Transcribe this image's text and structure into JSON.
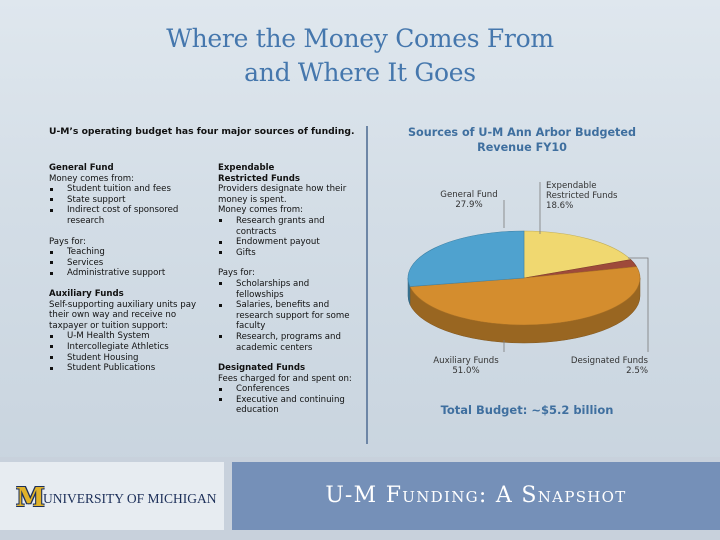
{
  "slide": {
    "title_line1": "Where the Money Comes From",
    "title_line2": "and Where It Goes",
    "intro": "U-M’s operating budget has four major sources of funding."
  },
  "general_fund": {
    "heading": "General Fund",
    "money_from_label": "Money comes from:",
    "sources": [
      "Student tuition and fees",
      "State support",
      "Indirect cost of sponsored research"
    ],
    "pays_for_label": "Pays for:",
    "pays_for": [
      "Teaching",
      "Services",
      "Administrative support"
    ]
  },
  "auxiliary_funds": {
    "heading": "Auxiliary Funds",
    "description": "Self-supporting auxiliary units pay their own way and receive no taxpayer or tuition support:",
    "items": [
      "U-M Health System",
      "Intercollegiate Athletics",
      "Student Housing",
      "Student Publications"
    ]
  },
  "expendable_restricted_funds": {
    "heading_line1": "Expendable",
    "heading_line2": "Restricted Funds",
    "description": "Providers designate how their money is spent.",
    "money_from_label": "Money comes from:",
    "sources": [
      "Research grants and contracts",
      "Endowment payout",
      "Gifts"
    ],
    "pays_for_label": "Pays for:",
    "pays_for": [
      "Scholarships and fellowships",
      "Salaries, benefits and research support for some faculty",
      "Research, programs and academic centers"
    ]
  },
  "designated_funds": {
    "heading": "Designated Funds",
    "description": "Fees charged for and spent on:",
    "items": [
      "Conferences",
      "Executive and continuing education"
    ]
  },
  "chart_data": {
    "type": "pie",
    "title_line1": "Sources of U-M Ann Arbor Budgeted",
    "title_line2": "Revenue FY10",
    "slices": [
      {
        "label_line1": "Expendable",
        "label_line2": "Restricted Funds",
        "value_label": "18.6%",
        "value": 18.6,
        "color": "#f0d870"
      },
      {
        "label_line1": "Designated Funds",
        "label_line2": "",
        "value_label": "2.5%",
        "value": 2.5,
        "color": "#9e4a3a"
      },
      {
        "label_line1": "Auxiliary Funds",
        "label_line2": "",
        "value_label": "51.0%",
        "value": 51.0,
        "color": "#d48d2e"
      },
      {
        "label_line1": "General Fund",
        "label_line2": "",
        "value_label": "27.9%",
        "value": 27.9,
        "color": "#4fa2cf"
      }
    ],
    "total": "Total Budget: ~$5.2 billion"
  },
  "footer": {
    "logo_m": "M",
    "logo_text": "UNIVERSITY OF MICHIGAN",
    "title": "U-M Funding: A Snapshot"
  }
}
